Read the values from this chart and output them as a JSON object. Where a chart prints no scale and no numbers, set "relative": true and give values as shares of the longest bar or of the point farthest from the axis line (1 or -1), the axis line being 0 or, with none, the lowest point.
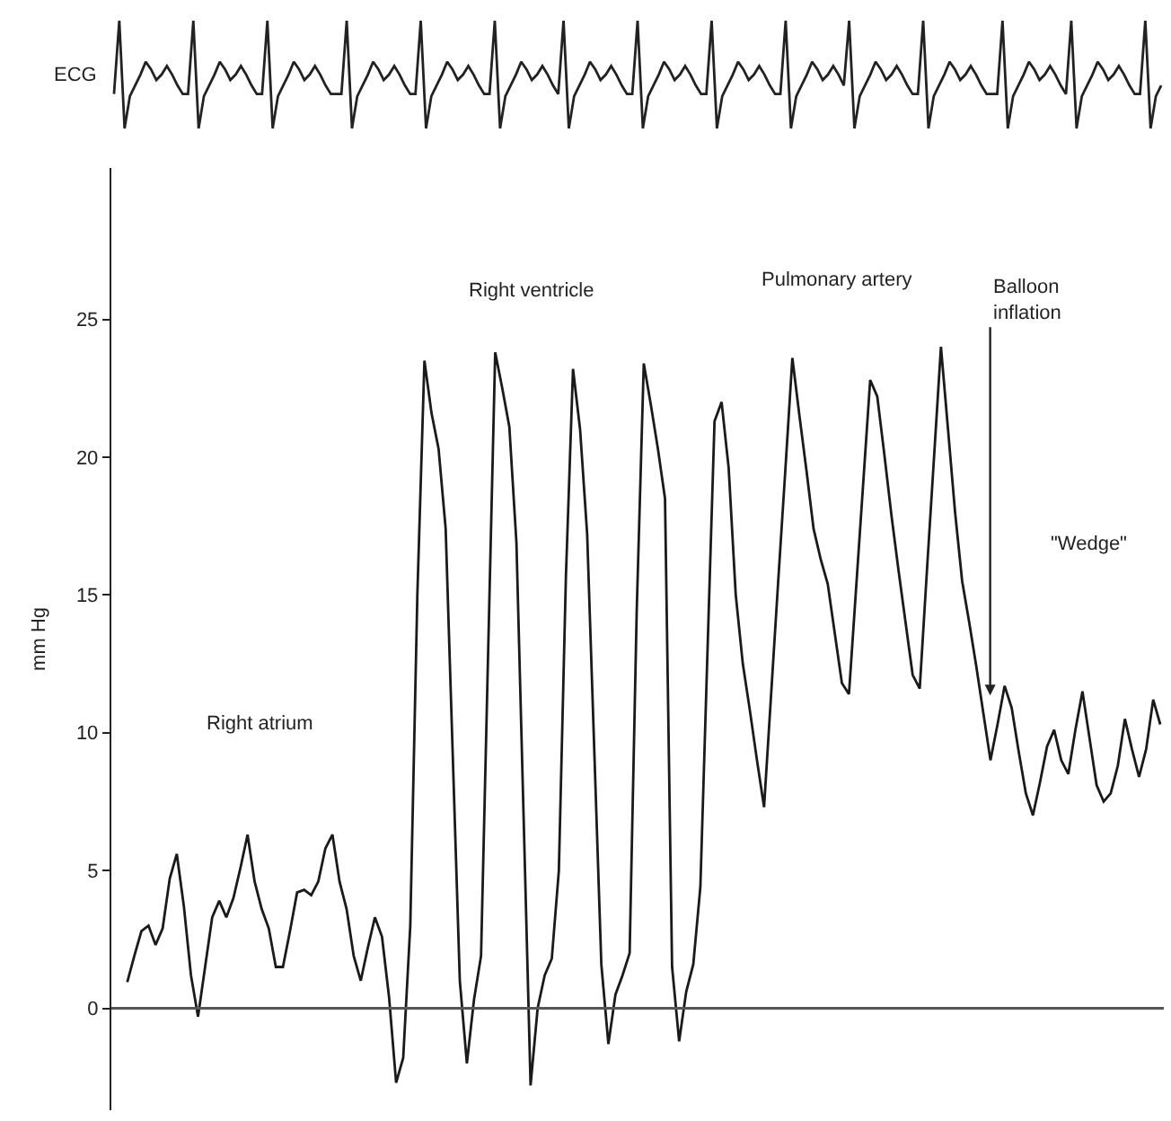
{
  "chart_data": [
    {
      "type": "line",
      "relative": true,
      "ylabel": "ECG",
      "tick_labels": false,
      "marker": "none",
      "line_style": "solid",
      "categories": [
        null,
        null,
        null,
        null,
        null,
        null,
        null,
        null,
        null,
        null,
        null,
        null,
        null,
        null,
        null,
        null,
        null,
        null,
        null,
        null,
        null,
        null,
        null,
        null,
        null,
        null,
        null,
        null,
        null,
        null,
        null,
        null,
        null,
        null,
        null,
        null,
        null,
        null,
        null,
        null,
        null,
        null,
        null,
        null,
        null,
        null,
        null,
        null,
        null,
        null,
        null,
        null,
        null,
        null,
        null,
        null,
        null,
        null,
        null,
        null,
        null,
        null,
        null,
        null,
        null,
        null,
        null,
        null,
        null,
        null,
        null,
        null,
        null,
        null,
        null,
        null,
        null,
        null,
        null,
        null,
        null,
        null,
        null,
        null,
        null,
        null,
        null,
        null,
        null,
        null,
        null,
        null,
        null,
        null,
        null,
        null,
        null,
        null,
        null,
        null,
        null,
        null,
        null,
        null,
        null,
        null,
        null,
        null,
        null,
        null,
        null,
        null,
        null,
        null,
        null,
        null,
        null,
        null,
        null,
        null,
        null,
        null,
        null,
        null,
        null,
        null,
        null,
        null,
        null,
        null,
        null,
        null,
        null,
        null,
        null,
        null,
        null,
        null,
        null,
        null,
        null,
        null,
        null,
        null,
        null,
        null,
        null,
        null,
        null,
        null,
        null,
        null,
        null,
        null,
        null,
        null,
        null,
        null,
        null,
        null,
        null,
        null,
        null,
        null,
        null,
        null,
        null,
        null,
        null,
        null,
        null,
        null,
        null,
        null,
        null,
        null,
        null,
        null,
        null,
        null,
        null,
        null,
        null,
        null,
        null,
        null,
        null,
        null,
        null,
        null,
        null,
        null,
        null,
        null,
        null,
        null,
        null,
        null,
        null
      ],
      "series": [
        {
          "color": "#222222",
          "values": [
            0.32,
            1,
            0,
            0.3,
            0.4,
            0.5,
            0.62,
            0.55,
            0.45,
            0.5,
            0.58,
            0.5,
            0.4,
            0.32,
            0.32,
            1,
            0,
            0.3,
            0.4,
            0.5,
            0.62,
            0.55,
            0.45,
            0.5,
            0.58,
            0.5,
            0.4,
            0.32,
            0.32,
            1,
            0,
            0.3,
            0.4,
            0.5,
            0.62,
            0.55,
            0.45,
            0.5,
            0.58,
            0.5,
            0.4,
            0.32,
            0.32,
            0.32,
            1,
            0,
            0.3,
            0.4,
            0.5,
            0.62,
            0.55,
            0.45,
            0.5,
            0.58,
            0.5,
            0.4,
            0.32,
            0.32,
            1,
            0,
            0.3,
            0.4,
            0.5,
            0.62,
            0.55,
            0.45,
            0.5,
            0.58,
            0.5,
            0.4,
            0.32,
            0.32,
            1,
            0,
            0.3,
            0.4,
            0.5,
            0.62,
            0.55,
            0.45,
            0.5,
            0.58,
            0.5,
            0.4,
            0.32,
            1,
            0,
            0.3,
            0.4,
            0.5,
            0.62,
            0.55,
            0.45,
            0.5,
            0.58,
            0.5,
            0.4,
            0.32,
            0.32,
            1,
            0,
            0.3,
            0.4,
            0.5,
            0.62,
            0.55,
            0.45,
            0.5,
            0.58,
            0.5,
            0.4,
            0.32,
            0.32,
            1,
            0,
            0.3,
            0.4,
            0.5,
            0.62,
            0.55,
            0.45,
            0.5,
            0.58,
            0.5,
            0.4,
            0.32,
            0.32,
            1,
            0,
            0.3,
            0.4,
            0.5,
            0.62,
            0.55,
            0.45,
            0.5,
            0.58,
            0.5,
            0.4,
            1,
            0,
            0.3,
            0.4,
            0.5,
            0.62,
            0.55,
            0.45,
            0.5,
            0.58,
            0.5,
            0.4,
            0.32,
            0.32,
            1,
            0,
            0.3,
            0.4,
            0.5,
            0.62,
            0.55,
            0.45,
            0.5,
            0.58,
            0.5,
            0.4,
            0.32,
            0.32,
            0.32,
            1,
            0,
            0.3,
            0.4,
            0.5,
            0.62,
            0.55,
            0.45,
            0.5,
            0.58,
            0.5,
            0.4,
            0.32,
            1,
            0,
            0.3,
            0.4,
            0.5,
            0.62,
            0.55,
            0.45,
            0.5,
            0.58,
            0.5,
            0.4,
            0.32,
            0.32,
            1,
            0,
            0.3,
            0.4
          ]
        }
      ]
    },
    {
      "type": "line",
      "ylabel": "mm Hg",
      "tick_labels": "y",
      "marker": "none",
      "line_style": "solid",
      "ylim": [
        -3.7,
        30.5
      ],
      "yticks": [
        0,
        5,
        10,
        15,
        20,
        25
      ],
      "categories": [
        null,
        null,
        null,
        null,
        null,
        null,
        null,
        null,
        null,
        null,
        null,
        null,
        null,
        null,
        null,
        null,
        null,
        null,
        null,
        null,
        null,
        null,
        null,
        null,
        null,
        null,
        null,
        null,
        null,
        null,
        null,
        null,
        null,
        null,
        null,
        null,
        null,
        null,
        null,
        null,
        null,
        null,
        null,
        null,
        null,
        null,
        null,
        null,
        null,
        null,
        null,
        null,
        null,
        null,
        null,
        null,
        null,
        null,
        null,
        null,
        null,
        null,
        null,
        null,
        null,
        null,
        null,
        null,
        null,
        null,
        null,
        null,
        null,
        null,
        null,
        null,
        null,
        null,
        null,
        null,
        null,
        null,
        null,
        null,
        null,
        null,
        null,
        null,
        null,
        null,
        null,
        null,
        null,
        null,
        null,
        null,
        null,
        null,
        null,
        null,
        null,
        null,
        null,
        null,
        null,
        null,
        null,
        null,
        null,
        null,
        null,
        null,
        null,
        null,
        null,
        null,
        null,
        null,
        null,
        null,
        null,
        null,
        null,
        null,
        null,
        null,
        null,
        null,
        null,
        null,
        null,
        null,
        null,
        null,
        null,
        null,
        null,
        null,
        null,
        null,
        null,
        null,
        null,
        null,
        null,
        null,
        null
      ],
      "ref_lines": [
        {
          "axis": "y",
          "value": 0,
          "color": "#555555"
        }
      ],
      "annotations": [
        "Right atrium",
        "Right ventricle",
        "Pulmonary artery",
        "Balloon\ninflation",
        "\"Wedge\""
      ],
      "series": [
        {
          "color": "#1a1a1a",
          "values": [
            0.95,
            1.9,
            2.8,
            3.0,
            2.3,
            2.9,
            4.7,
            5.6,
            3.7,
            1.2,
            -0.3,
            1.5,
            3.3,
            3.9,
            3.3,
            4.0,
            5.1,
            6.3,
            4.6,
            3.6,
            2.9,
            1.5,
            1.5,
            2.8,
            4.2,
            4.3,
            4.1,
            4.6,
            5.8,
            6.3,
            4.6,
            3.6,
            1.9,
            1.0,
            2.2,
            3.3,
            2.6,
            0.4,
            -2.7,
            -1.8,
            3.0,
            15.0,
            23.5,
            21.6,
            20.3,
            17.4,
            9.2,
            1.0,
            -2.0,
            0.3,
            1.9,
            12.9,
            23.8,
            22.5,
            21.1,
            16.9,
            7.1,
            -2.8,
            0.0,
            1.2,
            1.8,
            5.0,
            15.7,
            23.2,
            21.0,
            17.2,
            9.4,
            1.6,
            -1.3,
            0.5,
            1.2,
            2.0,
            14.4,
            23.4,
            21.9,
            20.3,
            18.5,
            1.5,
            -1.2,
            0.6,
            1.6,
            4.4,
            12.9,
            21.3,
            22.0,
            19.6,
            15.0,
            12.5,
            10.8,
            9.0,
            7.3,
            11.4,
            15.5,
            19.5,
            23.6,
            21.5,
            19.5,
            17.4,
            16.3,
            15.4,
            13.6,
            11.8,
            11.4,
            15.2,
            19.0,
            22.8,
            22.2,
            20.1,
            17.9,
            15.9,
            14.0,
            12.1,
            11.6,
            15.8,
            19.9,
            24.0,
            21.0,
            18.0,
            15.5,
            14.0,
            12.4,
            10.7,
            9.0,
            10.3,
            11.7,
            10.9,
            9.3,
            7.8,
            7.0,
            8.2,
            9.5,
            10.1,
            9.0,
            8.5,
            10.1,
            11.5,
            9.8,
            8.1,
            7.5,
            7.8,
            8.8,
            10.5,
            9.4,
            8.4,
            9.4,
            11.2,
            10.3
          ]
        }
      ]
    }
  ]
}
